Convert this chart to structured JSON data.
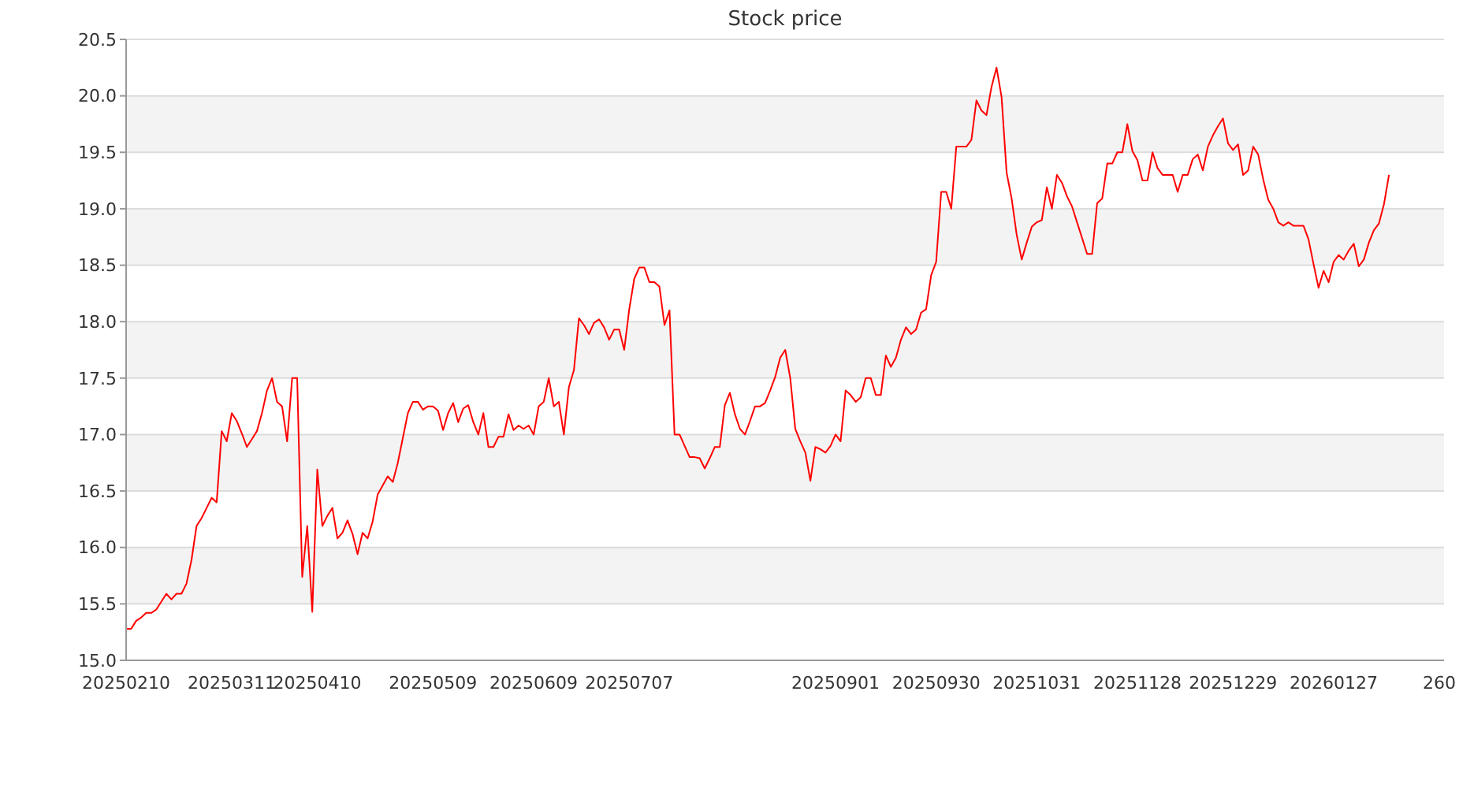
{
  "chart_data": {
    "type": "line",
    "title": "Stock price",
    "ylim": [
      15,
      20.5
    ],
    "yticks": [
      {
        "value": 15,
        "label": "15.0"
      },
      {
        "value": 15.5,
        "label": "15.5"
      },
      {
        "value": 16,
        "label": "16.0"
      },
      {
        "value": 16.5,
        "label": "16.5"
      },
      {
        "value": 17,
        "label": "17.0"
      },
      {
        "value": 17.5,
        "label": "17.5"
      },
      {
        "value": 18,
        "label": "18.0"
      },
      {
        "value": 18.5,
        "label": "18.5"
      },
      {
        "value": 19,
        "label": "19.0"
      },
      {
        "value": 19.5,
        "label": "19.5"
      },
      {
        "value": 20,
        "label": "20.0"
      },
      {
        "value": 20.5,
        "label": "20.5"
      }
    ],
    "categories": [
      "20250210",
      null,
      null,
      null,
      null,
      null,
      null,
      null,
      null,
      null,
      null,
      null,
      null,
      null,
      null,
      null,
      null,
      null,
      null,
      null,
      null,
      "20250311",
      null,
      null,
      null,
      null,
      null,
      null,
      null,
      null,
      null,
      null,
      null,
      null,
      null,
      null,
      null,
      null,
      "20250410",
      null,
      null,
      null,
      null,
      null,
      null,
      null,
      null,
      null,
      null,
      null,
      null,
      null,
      null,
      null,
      null,
      null,
      null,
      null,
      null,
      null,
      null,
      "20250509",
      null,
      null,
      null,
      null,
      null,
      null,
      null,
      null,
      null,
      null,
      null,
      null,
      null,
      null,
      null,
      null,
      null,
      null,
      null,
      "20250609",
      null,
      null,
      null,
      null,
      null,
      null,
      null,
      null,
      null,
      null,
      null,
      null,
      null,
      null,
      null,
      null,
      null,
      null,
      "20250707",
      null,
      null,
      null,
      null,
      null,
      null,
      null,
      null,
      null,
      null,
      null,
      null,
      null,
      null,
      null,
      null,
      null,
      null,
      null,
      null,
      null,
      null,
      null,
      null,
      null,
      null,
      null,
      null,
      null,
      null,
      null,
      null,
      null,
      null,
      null,
      null,
      null,
      null,
      null,
      null,
      "20250901",
      null,
      null,
      null,
      null,
      null,
      null,
      null,
      null,
      null,
      null,
      null,
      null,
      null,
      null,
      null,
      null,
      null,
      null,
      null,
      "20250930",
      null,
      null,
      null,
      null,
      null,
      null,
      null,
      null,
      null,
      null,
      null,
      null,
      null,
      null,
      null,
      null,
      null,
      null,
      null,
      "20251031",
      null,
      null,
      null,
      null,
      null,
      null,
      null,
      null,
      null,
      null,
      null,
      null,
      null,
      null,
      null,
      null,
      null,
      null,
      null,
      "20251128",
      null,
      null,
      null,
      null,
      null,
      null,
      null,
      null,
      null,
      null,
      null,
      null,
      null,
      null,
      null,
      null,
      null,
      null,
      "20251229",
      null,
      null,
      null,
      null,
      null,
      null,
      null,
      null,
      null,
      null,
      null,
      null,
      null,
      null,
      null,
      null,
      null,
      null,
      null,
      "20260127",
      null,
      null,
      null,
      null,
      null,
      null,
      null,
      null,
      null,
      null,
      null,
      null,
      null,
      null,
      null,
      null,
      null,
      null,
      null,
      null,
      "260"
    ],
    "grid": "y",
    "marker": "none",
    "line_style": "solid",
    "series": [
      {
        "color": "#ff0000",
        "values": [
          15.28,
          15.28,
          15.35,
          15.38,
          15.42,
          15.42,
          15.45,
          15.52,
          15.59,
          15.54,
          15.59,
          15.59,
          15.68,
          15.89,
          16.19,
          16.26,
          16.35,
          16.44,
          16.4,
          17.03,
          16.94,
          17.19,
          17.12,
          17.01,
          16.89,
          16.96,
          17.03,
          17.19,
          17.39,
          17.5,
          17.29,
          17.25,
          16.94,
          17.5,
          17.5,
          15.74,
          16.19,
          15.43,
          16.69,
          16.19,
          16.28,
          16.35,
          16.08,
          16.13,
          16.24,
          16.12,
          15.94,
          16.13,
          16.08,
          16.23,
          16.47,
          16.55,
          16.63,
          16.58,
          16.75,
          16.97,
          17.19,
          17.29,
          17.29,
          17.22,
          17.25,
          17.25,
          17.21,
          17.04,
          17.19,
          17.28,
          17.11,
          17.23,
          17.26,
          17.11,
          17.0,
          17.19,
          16.89,
          16.89,
          16.98,
          16.98,
          17.18,
          17.04,
          17.08,
          17.05,
          17.08,
          17.0,
          17.25,
          17.29,
          17.5,
          17.25,
          17.29,
          17.0,
          17.42,
          17.57,
          18.03,
          17.97,
          17.89,
          17.99,
          18.02,
          17.95,
          17.84,
          17.93,
          17.93,
          17.75,
          18.11,
          18.38,
          18.48,
          18.48,
          18.35,
          18.35,
          18.31,
          17.97,
          18.1,
          17.0,
          17.0,
          16.9,
          16.8,
          16.8,
          16.79,
          16.7,
          16.79,
          16.89,
          16.89,
          17.26,
          17.37,
          17.18,
          17.05,
          17.0,
          17.12,
          17.25,
          17.25,
          17.28,
          17.39,
          17.51,
          17.68,
          17.75,
          17.5,
          17.05,
          16.94,
          16.84,
          16.59,
          16.89,
          16.87,
          16.84,
          16.9,
          17.0,
          16.94,
          17.39,
          17.35,
          17.29,
          17.33,
          17.5,
          17.5,
          17.35,
          17.35,
          17.7,
          17.6,
          17.68,
          17.84,
          17.95,
          17.89,
          17.93,
          18.08,
          18.11,
          18.41,
          18.53,
          19.15,
          19.15,
          19.0,
          19.55,
          19.55,
          19.55,
          19.61,
          19.96,
          19.87,
          19.83,
          20.08,
          20.25,
          19.99,
          19.32,
          19.09,
          18.77,
          18.55,
          18.7,
          18.84,
          18.88,
          18.9,
          19.19,
          19.0,
          19.3,
          19.23,
          19.11,
          19.02,
          18.88,
          18.74,
          18.6,
          18.6,
          19.05,
          19.09,
          19.4,
          19.4,
          19.5,
          19.5,
          19.75,
          19.51,
          19.43,
          19.25,
          19.25,
          19.5,
          19.36,
          19.3,
          19.3,
          19.3,
          19.15,
          19.3,
          19.3,
          19.44,
          19.48,
          19.34,
          19.55,
          19.65,
          19.73,
          19.8,
          19.58,
          19.52,
          19.57,
          19.3,
          19.34,
          19.55,
          19.48,
          19.26,
          19.08,
          19.0,
          18.88,
          18.85,
          18.88,
          18.85,
          18.85,
          18.85,
          18.73,
          18.51,
          18.3,
          18.45,
          18.35,
          18.53,
          18.59,
          18.55,
          18.63,
          18.69,
          18.49,
          18.55,
          18.7,
          18.81,
          18.87,
          19.04,
          19.3,
          null,
          null,
          null,
          null,
          null,
          null,
          null,
          null,
          null,
          null
        ]
      }
    ]
  }
}
